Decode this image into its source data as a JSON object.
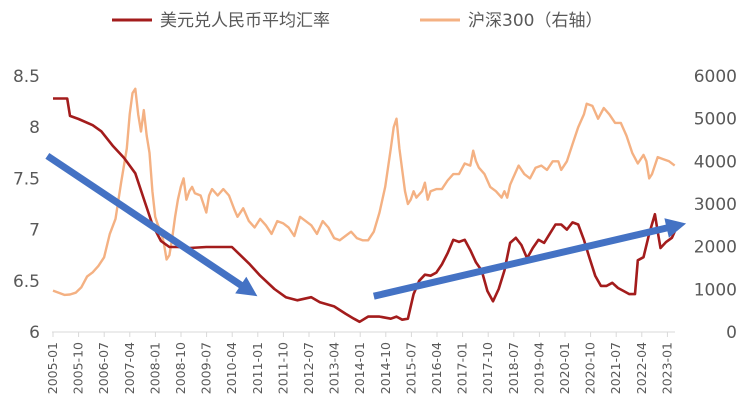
{
  "chart_data": {
    "type": "line",
    "title": "",
    "legend": [
      {
        "name": "美元兑人民币平均汇率",
        "color": "#A31C1C"
      },
      {
        "name": "沪深300（右轴）",
        "color": "#F4B183"
      }
    ],
    "y_left": {
      "ticks": [
        "8.5",
        "8",
        "7.5",
        "7",
        "6.5",
        "6"
      ],
      "min": 6,
      "max": 8.5
    },
    "y_right": {
      "ticks": [
        "6000",
        "5000",
        "4000",
        "3000",
        "2000",
        "1000",
        "0"
      ],
      "min": 0,
      "max": 6000
    },
    "x_labels": [
      "2005-01",
      "2005-10",
      "2006-07",
      "2007-04",
      "2008-01",
      "2008-10",
      "2009-07",
      "2010-04",
      "2011-01",
      "2011-10",
      "2012-07",
      "2013-04",
      "2014-01",
      "2014-10",
      "2015-07",
      "2016-04",
      "2017-01",
      "2017-10",
      "2018-07",
      "2019-04",
      "2020-01",
      "2020-10",
      "2021-07",
      "2022-04",
      "2023-01"
    ],
    "series": [
      {
        "name": "美元兑人民币平均汇率",
        "axis": "left",
        "color": "#A31C1C",
        "points": [
          [
            0,
            8.28
          ],
          [
            5,
            8.28
          ],
          [
            6,
            8.11
          ],
          [
            9,
            8.08
          ],
          [
            14,
            8.02
          ],
          [
            17,
            7.96
          ],
          [
            21,
            7.82
          ],
          [
            25,
            7.7
          ],
          [
            29,
            7.55
          ],
          [
            32,
            7.3
          ],
          [
            35,
            7.05
          ],
          [
            38,
            6.89
          ],
          [
            41,
            6.83
          ],
          [
            44,
            6.83
          ],
          [
            48,
            6.82
          ],
          [
            54,
            6.83
          ],
          [
            63,
            6.83
          ],
          [
            66,
            6.75
          ],
          [
            69,
            6.67
          ],
          [
            73,
            6.55
          ],
          [
            78,
            6.42
          ],
          [
            82,
            6.34
          ],
          [
            86,
            6.31
          ],
          [
            91,
            6.34
          ],
          [
            94,
            6.29
          ],
          [
            99,
            6.25
          ],
          [
            103,
            6.18
          ],
          [
            106,
            6.13
          ],
          [
            108,
            6.1
          ],
          [
            111,
            6.15
          ],
          [
            115,
            6.15
          ],
          [
            119,
            6.13
          ],
          [
            121,
            6.15
          ],
          [
            123,
            6.12
          ],
          [
            125,
            6.13
          ],
          [
            127,
            6.37
          ],
          [
            129,
            6.5
          ],
          [
            131,
            6.56
          ],
          [
            133,
            6.55
          ],
          [
            135,
            6.58
          ],
          [
            137,
            6.66
          ],
          [
            139,
            6.77
          ],
          [
            141,
            6.9
          ],
          [
            143,
            6.88
          ],
          [
            145,
            6.9
          ],
          [
            147,
            6.8
          ],
          [
            149,
            6.68
          ],
          [
            151,
            6.6
          ],
          [
            153,
            6.4
          ],
          [
            155,
            6.3
          ],
          [
            157,
            6.42
          ],
          [
            159,
            6.6
          ],
          [
            161,
            6.87
          ],
          [
            163,
            6.92
          ],
          [
            165,
            6.85
          ],
          [
            167,
            6.72
          ],
          [
            169,
            6.82
          ],
          [
            171,
            6.9
          ],
          [
            173,
            6.87
          ],
          [
            175,
            6.96
          ],
          [
            177,
            7.05
          ],
          [
            179,
            7.05
          ],
          [
            181,
            7.0
          ],
          [
            183,
            7.07
          ],
          [
            185,
            7.05
          ],
          [
            187,
            6.9
          ],
          [
            189,
            6.72
          ],
          [
            191,
            6.55
          ],
          [
            193,
            6.45
          ],
          [
            195,
            6.45
          ],
          [
            197,
            6.48
          ],
          [
            199,
            6.43
          ],
          [
            201,
            6.4
          ],
          [
            203,
            6.37
          ],
          [
            205,
            6.37
          ],
          [
            206,
            6.7
          ],
          [
            208,
            6.73
          ],
          [
            210,
            6.96
          ],
          [
            212,
            7.15
          ],
          [
            213,
            6.98
          ],
          [
            214,
            6.82
          ],
          [
            216,
            6.88
          ],
          [
            218,
            6.92
          ],
          [
            219,
            6.98
          ]
        ]
      },
      {
        "name": "沪深300（右轴）",
        "axis": "right",
        "color": "#F4B183",
        "points": [
          [
            0,
            970
          ],
          [
            2,
            920
          ],
          [
            4,
            870
          ],
          [
            6,
            880
          ],
          [
            8,
            920
          ],
          [
            10,
            1050
          ],
          [
            12,
            1300
          ],
          [
            14,
            1400
          ],
          [
            16,
            1550
          ],
          [
            18,
            1750
          ],
          [
            20,
            2300
          ],
          [
            22,
            2650
          ],
          [
            24,
            3500
          ],
          [
            26,
            4300
          ],
          [
            27,
            5100
          ],
          [
            28,
            5600
          ],
          [
            29,
            5700
          ],
          [
            30,
            5100
          ],
          [
            31,
            4700
          ],
          [
            32,
            5200
          ],
          [
            33,
            4600
          ],
          [
            34,
            4200
          ],
          [
            35,
            3300
          ],
          [
            36,
            2700
          ],
          [
            37,
            2500
          ],
          [
            38,
            2350
          ],
          [
            39,
            2100
          ],
          [
            40,
            1700
          ],
          [
            41,
            1800
          ],
          [
            42,
            2200
          ],
          [
            43,
            2700
          ],
          [
            44,
            3100
          ],
          [
            45,
            3400
          ],
          [
            46,
            3600
          ],
          [
            47,
            3100
          ],
          [
            48,
            3300
          ],
          [
            49,
            3400
          ],
          [
            50,
            3250
          ],
          [
            52,
            3200
          ],
          [
            54,
            2800
          ],
          [
            55,
            3200
          ],
          [
            56,
            3350
          ],
          [
            58,
            3200
          ],
          [
            60,
            3350
          ],
          [
            62,
            3200
          ],
          [
            64,
            2850
          ],
          [
            65,
            2700
          ],
          [
            67,
            2900
          ],
          [
            69,
            2600
          ],
          [
            71,
            2450
          ],
          [
            73,
            2650
          ],
          [
            75,
            2500
          ],
          [
            77,
            2300
          ],
          [
            79,
            2600
          ],
          [
            81,
            2550
          ],
          [
            83,
            2450
          ],
          [
            85,
            2250
          ],
          [
            87,
            2700
          ],
          [
            89,
            2600
          ],
          [
            91,
            2500
          ],
          [
            93,
            2300
          ],
          [
            95,
            2600
          ],
          [
            97,
            2450
          ],
          [
            99,
            2200
          ],
          [
            101,
            2150
          ],
          [
            103,
            2250
          ],
          [
            105,
            2350
          ],
          [
            107,
            2200
          ],
          [
            109,
            2150
          ],
          [
            111,
            2150
          ],
          [
            113,
            2350
          ],
          [
            115,
            2800
          ],
          [
            117,
            3400
          ],
          [
            119,
            4300
          ],
          [
            120,
            4800
          ],
          [
            121,
            5000
          ],
          [
            122,
            4300
          ],
          [
            123,
            3800
          ],
          [
            124,
            3300
          ],
          [
            125,
            3000
          ],
          [
            126,
            3100
          ],
          [
            127,
            3300
          ],
          [
            128,
            3150
          ],
          [
            130,
            3300
          ],
          [
            131,
            3500
          ],
          [
            132,
            3100
          ],
          [
            133,
            3300
          ],
          [
            135,
            3350
          ],
          [
            137,
            3350
          ],
          [
            139,
            3550
          ],
          [
            141,
            3700
          ],
          [
            143,
            3700
          ],
          [
            145,
            3950
          ],
          [
            147,
            3900
          ],
          [
            148,
            4250
          ],
          [
            149,
            4000
          ],
          [
            150,
            3850
          ],
          [
            152,
            3700
          ],
          [
            154,
            3400
          ],
          [
            156,
            3300
          ],
          [
            158,
            3150
          ],
          [
            159,
            3300
          ],
          [
            160,
            3150
          ],
          [
            161,
            3450
          ],
          [
            162,
            3600
          ],
          [
            164,
            3900
          ],
          [
            166,
            3700
          ],
          [
            168,
            3600
          ],
          [
            170,
            3850
          ],
          [
            172,
            3900
          ],
          [
            174,
            3800
          ],
          [
            176,
            4000
          ],
          [
            178,
            4000
          ],
          [
            179,
            3800
          ],
          [
            181,
            4000
          ],
          [
            183,
            4400
          ],
          [
            185,
            4800
          ],
          [
            187,
            5100
          ],
          [
            188,
            5350
          ],
          [
            190,
            5300
          ],
          [
            192,
            5000
          ],
          [
            194,
            5250
          ],
          [
            196,
            5100
          ],
          [
            198,
            4900
          ],
          [
            200,
            4900
          ],
          [
            202,
            4600
          ],
          [
            204,
            4200
          ],
          [
            206,
            3950
          ],
          [
            208,
            4150
          ],
          [
            209,
            4000
          ],
          [
            210,
            3600
          ],
          [
            211,
            3700
          ],
          [
            213,
            4100
          ],
          [
            215,
            4050
          ],
          [
            217,
            4000
          ],
          [
            219,
            3900
          ]
        ]
      }
    ],
    "annotations": [
      {
        "type": "arrow",
        "direction": "down",
        "color": "#4472C4",
        "from": [
          -2,
          7.72
        ],
        "to": [
          72,
          6.35
        ]
      },
      {
        "type": "arrow",
        "direction": "up",
        "color": "#4472C4",
        "from": [
          113,
          6.35
        ],
        "to": [
          223,
          7.06
        ]
      }
    ]
  }
}
